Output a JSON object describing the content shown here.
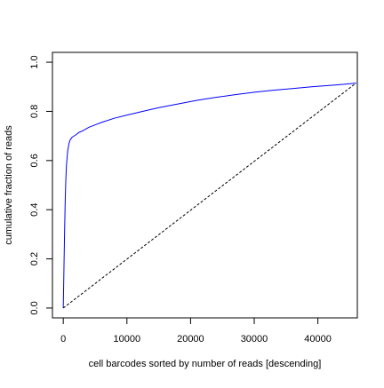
{
  "chart_data": {
    "type": "line",
    "title": "",
    "xlabel": "cell barcodes sorted by number of reads [descending]",
    "ylabel": "cumulative fraction of reads",
    "xlim": [
      -1700,
      46200
    ],
    "ylim": [
      -0.04,
      1.04
    ],
    "x_ticks": [
      0,
      10000,
      20000,
      30000,
      40000
    ],
    "x_tick_labels": [
      "0",
      "10000",
      "20000",
      "30000",
      "40000"
    ],
    "y_ticks": [
      0.0,
      0.2,
      0.4,
      0.6,
      0.8,
      1.0
    ],
    "y_tick_labels": [
      "0.0",
      "0.2",
      "0.4",
      "0.6",
      "0.8",
      "1.0"
    ],
    "grid": false,
    "series": [
      {
        "color": "#0000ff",
        "line_style": "solid",
        "x": [
          0,
          100,
          200,
          300,
          400,
          500,
          700,
          900,
          1100,
          1400,
          1700,
          2000,
          2500,
          3000,
          4000,
          5000,
          6000,
          8000,
          10000,
          12000,
          15000,
          18000,
          21000,
          24000,
          27000,
          30000,
          33000,
          36000,
          39000,
          42000,
          44000,
          46000
        ],
        "y": [
          0.0,
          0.15,
          0.3,
          0.43,
          0.52,
          0.58,
          0.64,
          0.67,
          0.685,
          0.695,
          0.7,
          0.705,
          0.715,
          0.72,
          0.735,
          0.745,
          0.755,
          0.772,
          0.785,
          0.797,
          0.815,
          0.83,
          0.845,
          0.857,
          0.868,
          0.878,
          0.886,
          0.893,
          0.9,
          0.906,
          0.91,
          0.915
        ]
      },
      {
        "color": "#000000",
        "line_style": "dashed",
        "x": [
          0,
          46000
        ],
        "y": [
          0.0,
          0.915
        ]
      }
    ]
  }
}
